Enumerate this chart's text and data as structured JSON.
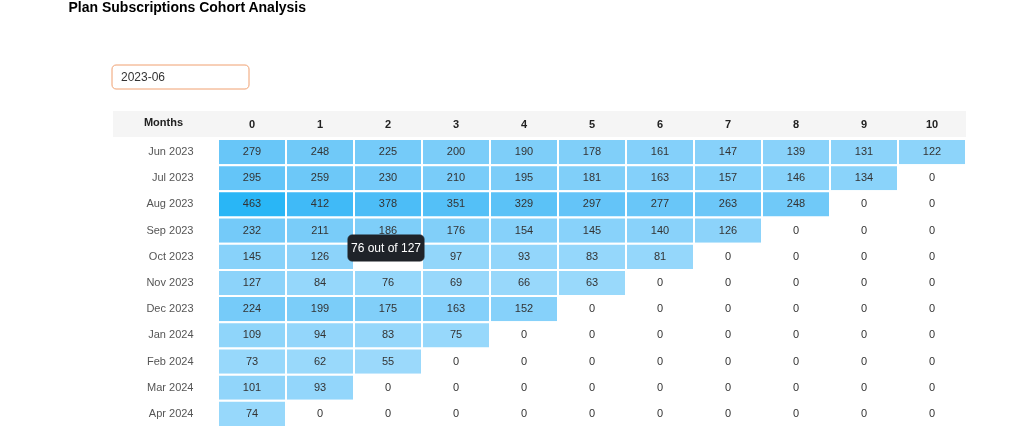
{
  "chart_data": {
    "type": "heatmap",
    "title": "Plan Subscriptions Cohort Analysis",
    "xlabel": "Months",
    "categories": [
      "0",
      "1",
      "2",
      "3",
      "4",
      "5",
      "6",
      "7",
      "8",
      "9",
      "10"
    ],
    "y_categories": [
      "Jun 2023",
      "Jul 2023",
      "Aug 2023",
      "Sep 2023",
      "Oct 2023",
      "Nov 2023",
      "Dec 2023",
      "Jan 2024",
      "Feb 2024",
      "Mar 2024",
      "Apr 2024"
    ],
    "cells": [
      [
        279,
        248,
        225,
        200,
        190,
        178,
        161,
        147,
        139,
        131,
        122
      ],
      [
        295,
        259,
        230,
        210,
        195,
        181,
        163,
        157,
        146,
        134,
        0
      ],
      [
        463,
        412,
        378,
        351,
        329,
        297,
        277,
        263,
        248,
        0,
        0
      ],
      [
        232,
        211,
        186,
        176,
        154,
        145,
        140,
        126,
        0,
        0,
        0
      ],
      [
        145,
        126,
        null,
        97,
        93,
        83,
        81,
        0,
        0,
        0,
        0
      ],
      [
        127,
        84,
        76,
        69,
        66,
        63,
        0,
        0,
        0,
        0,
        0
      ],
      [
        224,
        199,
        175,
        163,
        152,
        0,
        0,
        0,
        0,
        0,
        0
      ],
      [
        109,
        94,
        83,
        75,
        0,
        0,
        0,
        0,
        0,
        0,
        0
      ],
      [
        73,
        62,
        55,
        0,
        0,
        0,
        0,
        0,
        0,
        0,
        0
      ],
      [
        101,
        93,
        0,
        0,
        0,
        0,
        0,
        0,
        0,
        0,
        0
      ],
      [
        74,
        0,
        0,
        0,
        0,
        0,
        0,
        0,
        0,
        0,
        0
      ]
    ],
    "data_labels": true,
    "annotations": [
      "2023-06",
      "76 out of 127"
    ]
  }
}
